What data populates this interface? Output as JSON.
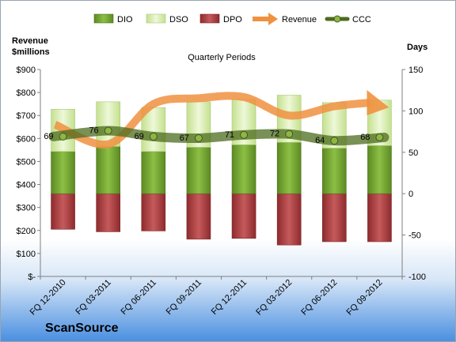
{
  "chart_data": {
    "type": "bar",
    "title": "Quarterly Periods",
    "company": "ScanSource",
    "y_left_label_line1": "Revenue",
    "y_left_label_line2": "$millions",
    "y_right_label": "Days",
    "categories": [
      "FQ 12-2010",
      "FQ 03-2011",
      "FQ 06-2011",
      "FQ 09-2011",
      "FQ 12-2011",
      "FQ 03-2012",
      "FQ 06-2012",
      "FQ 09-2012"
    ],
    "y_left": {
      "min": 0,
      "max": 900,
      "step": 100,
      "tick_labels": [
        "$-",
        "$100",
        "$200",
        "$300",
        "$400",
        "$500",
        "$600",
        "$700",
        "$800",
        "$900"
      ]
    },
    "y_right": {
      "min": -100,
      "max": 150,
      "step": 50,
      "tick_labels": [
        "-100",
        "-50",
        "0",
        "50",
        "100",
        "150"
      ]
    },
    "series": [
      {
        "name": "DIO",
        "axis": "right",
        "kind": "stacked-bar",
        "color": "#6f9a2e",
        "values": [
          51,
          57,
          51,
          56,
          59,
          62,
          55,
          58
        ]
      },
      {
        "name": "DSO",
        "axis": "right",
        "kind": "stacked-bar",
        "color": "#d6ecb0",
        "values": [
          51,
          54,
          53,
          55,
          55,
          57,
          55,
          55
        ]
      },
      {
        "name": "DPO",
        "axis": "right",
        "kind": "negative-bar",
        "color": "#a33a3c",
        "values": [
          -43,
          -46,
          -45,
          -55,
          -54,
          -62,
          -58,
          -58
        ]
      },
      {
        "name": "Revenue",
        "axis": "left",
        "kind": "arrow-line",
        "color": "#f0913f",
        "values": [
          660,
          575,
          750,
          775,
          780,
          700,
          740,
          735
        ]
      },
      {
        "name": "CCC",
        "axis": "right",
        "kind": "line",
        "color": "#4c6b1e",
        "values": [
          69,
          76,
          69,
          67,
          71,
          72,
          64,
          68
        ],
        "labels": [
          "69",
          "76",
          "69",
          "67",
          "71",
          "72",
          "64",
          "68"
        ]
      }
    ],
    "legend_position": "top",
    "grid": false
  }
}
